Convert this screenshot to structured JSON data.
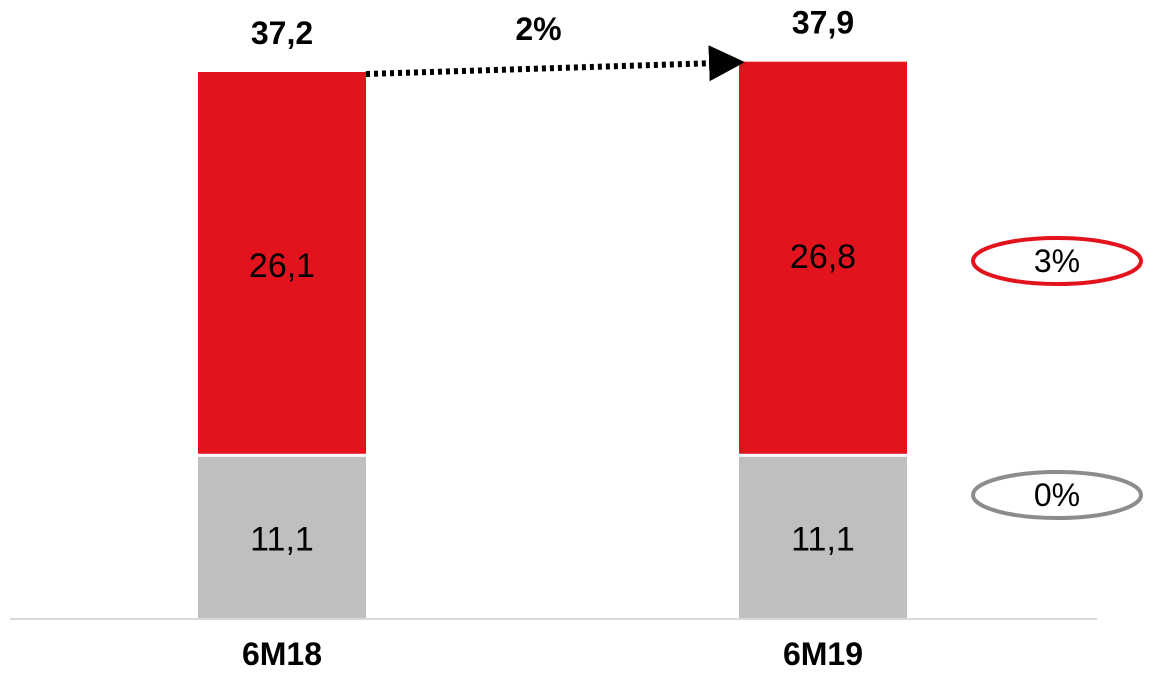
{
  "chart_data": {
    "type": "bar",
    "stacked": true,
    "categories": [
      "6M18",
      "6M19"
    ],
    "series": [
      {
        "values": [
          11.1,
          11.1
        ],
        "labels": [
          "11,1",
          "11,1"
        ],
        "color": "#bfbfbf"
      },
      {
        "values": [
          26.1,
          26.8
        ],
        "labels": [
          "26,1",
          "26,8"
        ],
        "color": "#e3131e"
      }
    ],
    "totals": [
      37.2,
      37.9
    ],
    "total_labels": [
      "37,2",
      "37,9"
    ],
    "growth_label": "2%",
    "series_growth": [
      {
        "label": "0%",
        "outline_color": "#8c8c8c"
      },
      {
        "label": "3%",
        "outline_color": "#e3131e"
      }
    ],
    "xlabel": "",
    "ylabel": "",
    "legend": "none",
    "grid": false,
    "ylim": [
      0,
      38.9
    ]
  }
}
